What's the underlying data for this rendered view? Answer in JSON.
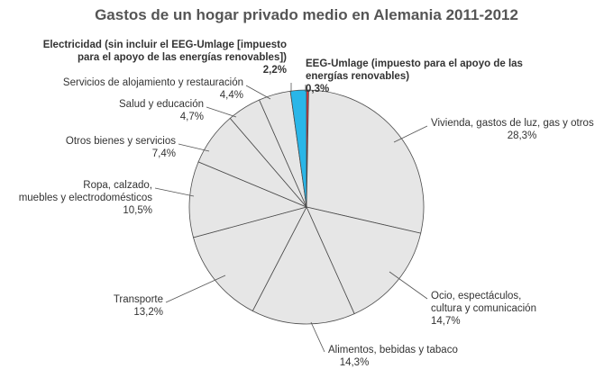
{
  "chart_data": {
    "type": "pie",
    "title": "Gastos de un hogar privado medio en Alemania 2011-2012",
    "start": "top, clockwise",
    "slices": [
      {
        "name": "EEG-Umlage",
        "value": 0.3,
        "value_label": "0,3%",
        "color": "#e8333a",
        "bold": true,
        "label_lines": [
          "EEG-Umlage (impuesto para el apoyo de las",
          "energías renovables)"
        ]
      },
      {
        "name": "Vivienda",
        "value": 28.3,
        "value_label": "28,3%",
        "color": "#e6e6e6",
        "bold": false,
        "label_lines": [
          "Vivienda, gastos de luz, gas y otros"
        ]
      },
      {
        "name": "Ocio",
        "value": 14.7,
        "value_label": "14,7%",
        "color": "#e6e6e6",
        "bold": false,
        "label_lines": [
          "Ocio, espectáculos,",
          "cultura y comunicación"
        ]
      },
      {
        "name": "Alimentos",
        "value": 14.3,
        "value_label": "14,3%",
        "color": "#e6e6e6",
        "bold": false,
        "label_lines": [
          "Alimentos, bebidas y tabaco"
        ]
      },
      {
        "name": "Transporte",
        "value": 13.2,
        "value_label": "13,2%",
        "color": "#e6e6e6",
        "bold": false,
        "label_lines": [
          "Transporte"
        ]
      },
      {
        "name": "Ropa",
        "value": 10.5,
        "value_label": "10,5%",
        "color": "#e6e6e6",
        "bold": false,
        "label_lines": [
          "Ropa, calzado,",
          "muebles y electrodomésticos"
        ]
      },
      {
        "name": "Otros",
        "value": 7.4,
        "value_label": "7,4%",
        "color": "#e6e6e6",
        "bold": false,
        "label_lines": [
          "Otros bienes y servicios"
        ]
      },
      {
        "name": "Salud",
        "value": 4.7,
        "value_label": "4,7%",
        "color": "#e6e6e6",
        "bold": false,
        "label_lines": [
          "Salud y educación"
        ]
      },
      {
        "name": "Alojamiento",
        "value": 4.4,
        "value_label": "4,4%",
        "color": "#e6e6e6",
        "bold": false,
        "label_lines": [
          "Servicios de alojamiento y restauración"
        ]
      },
      {
        "name": "Electricidad",
        "value": 2.2,
        "value_label": "2,2%",
        "color": "#29b6e8",
        "bold": true,
        "label_lines": [
          "Electricidad (sin incluir el EEG-Umlage [impuesto",
          "para el apoyo de las energías renovables])"
        ]
      }
    ]
  }
}
